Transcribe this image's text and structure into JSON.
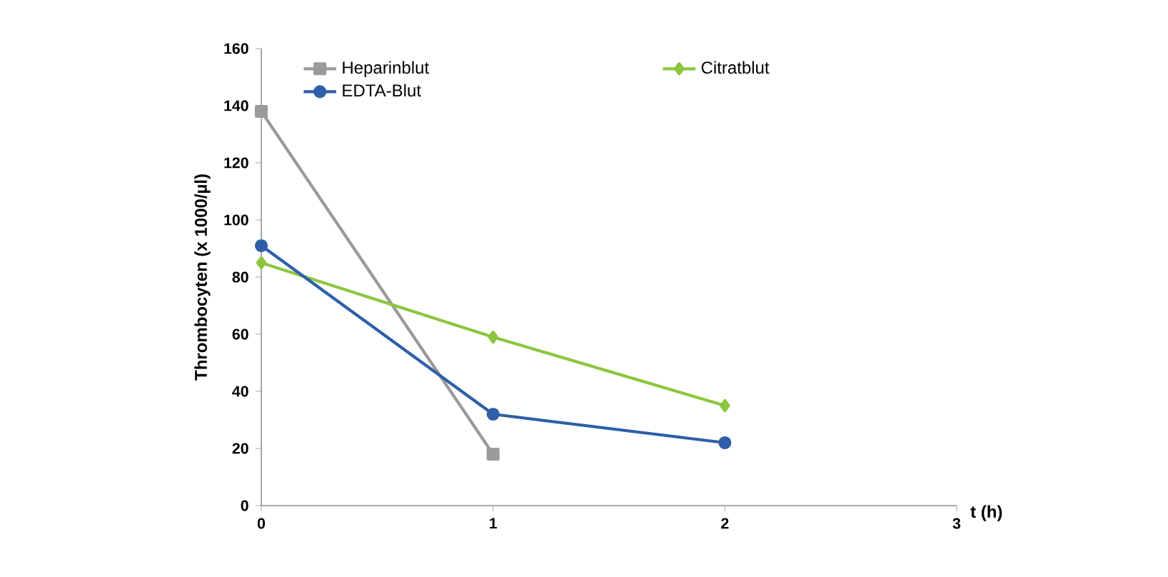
{
  "chart_data": {
    "type": "line",
    "xlabel": "t (h)",
    "ylabel": "Thrombocyten (x 1000/µl)",
    "xlim": [
      0,
      3
    ],
    "xticks": [
      0,
      1,
      2,
      3
    ],
    "ylim": [
      0,
      160
    ],
    "yticks": [
      0,
      20,
      40,
      60,
      80,
      100,
      120,
      140,
      160
    ],
    "legend": "top",
    "grid": false,
    "line_style": "solid",
    "series": [
      {
        "name": "Heparinblut",
        "color": "#9a9a9a",
        "marker": "square",
        "x": [
          0,
          1
        ],
        "values": [
          138,
          18
        ]
      },
      {
        "name": "Citratblut",
        "color": "#8cc63f",
        "marker": "diamond",
        "x": [
          0,
          1,
          2
        ],
        "values": [
          85,
          59,
          35
        ]
      },
      {
        "name": "EDTA-Blut",
        "color": "#2e5fa8",
        "marker": "circle",
        "x": [
          0,
          1,
          2
        ],
        "values": [
          91,
          32,
          22
        ]
      }
    ]
  }
}
